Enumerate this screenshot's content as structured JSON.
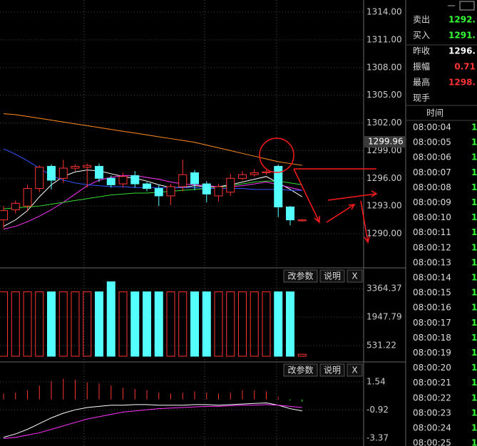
{
  "price_panel": {
    "ylim": [
      1286.38,
      1315.31
    ],
    "yticks": [
      {
        "value": 1314,
        "label": "1314.00"
      },
      {
        "value": 1311,
        "label": "1311.00"
      },
      {
        "value": 1308,
        "label": "1308.00"
      },
      {
        "value": 1305,
        "label": "1305.00"
      },
      {
        "value": 1302,
        "label": "1302.00"
      },
      {
        "value": 1299,
        "label": "1299.00"
      },
      {
        "value": 1296,
        "label": "1296.00"
      },
      {
        "value": 1293,
        "label": "1293.00"
      },
      {
        "value": 1290,
        "label": "1290.00"
      }
    ],
    "current": {
      "value": 1299.96,
      "label": "1299.96"
    },
    "candles": [
      {
        "open": 1291.5,
        "close": 1292.5,
        "high": 1293,
        "low": 1290.6
      },
      {
        "open": 1292.6,
        "close": 1293.3,
        "high": 1293.6,
        "low": 1292.2
      },
      {
        "open": 1293,
        "close": 1294.9,
        "high": 1295.3,
        "low": 1292.5
      },
      {
        "open": 1294.9,
        "close": 1297.2,
        "high": 1297.4,
        "low": 1294.5
      },
      {
        "open": 1297.3,
        "close": 1295.8,
        "high": 1297.5,
        "low": 1294.8
      },
      {
        "open": 1296,
        "close": 1297.1,
        "high": 1298,
        "low": 1295.5
      },
      {
        "open": 1297.1,
        "close": 1297.3,
        "high": 1297.5,
        "low": 1296.8
      },
      {
        "open": 1297.2,
        "close": 1297.4,
        "high": 1297.6,
        "low": 1295
      },
      {
        "open": 1297.3,
        "close": 1296,
        "high": 1297.6,
        "low": 1295.6
      },
      {
        "open": 1296,
        "close": 1295.3,
        "high": 1296.3,
        "low": 1295
      },
      {
        "open": 1295.4,
        "close": 1296.2,
        "high": 1296.6,
        "low": 1295
      },
      {
        "open": 1296.3,
        "close": 1295.4,
        "high": 1296.8,
        "low": 1295
      },
      {
        "open": 1295.4,
        "close": 1294.9,
        "high": 1295.6,
        "low": 1294.6
      },
      {
        "open": 1294.9,
        "close": 1294.1,
        "high": 1295.3,
        "low": 1293
      },
      {
        "open": 1294.1,
        "close": 1295.1,
        "high": 1295.4,
        "low": 1293.1
      },
      {
        "open": 1295.1,
        "close": 1296.4,
        "high": 1298,
        "low": 1294.6
      },
      {
        "open": 1296.6,
        "close": 1295.4,
        "high": 1296.9,
        "low": 1294.7
      },
      {
        "open": 1295.4,
        "close": 1294.3,
        "high": 1295.7,
        "low": 1293.4
      },
      {
        "open": 1294.1,
        "close": 1295.1,
        "high": 1295.4,
        "low": 1293.5
      },
      {
        "open": 1294.5,
        "close": 1296,
        "high": 1296.5,
        "low": 1294.1
      },
      {
        "open": 1296,
        "close": 1296.4,
        "high": 1296.8,
        "low": 1295.8
      },
      {
        "open": 1296.4,
        "close": 1296.6,
        "high": 1297,
        "low": 1296.2
      },
      {
        "open": 1296.6,
        "close": 1296.7,
        "high": 1296.9,
        "low": 1296.4
      },
      {
        "open": 1297.3,
        "close": 1292.9,
        "high": 1297.5,
        "low": 1291.8
      },
      {
        "open": 1292.9,
        "close": 1291.5,
        "high": 1293,
        "low": 1290.9
      },
      {
        "open": 1291.4,
        "close": 1291.5,
        "high": 1291.6,
        "low": 1291.3
      }
    ],
    "ma": [
      {
        "color": "#ffffff",
        "values": [
          1290.8,
          1291.5,
          1292.5,
          1294,
          1295.3,
          1296.2,
          1296.7,
          1296.9,
          1296.8,
          1296.5,
          1296.2,
          1296,
          1295.7,
          1295.3,
          1295,
          1295,
          1295.2,
          1295.1,
          1295.1,
          1295.3,
          1295.6,
          1295.9,
          1296.2,
          1295.5,
          1294.8,
          1294
        ]
      },
      {
        "color": "#ff33ff",
        "values": [
          1290.5,
          1290.8,
          1291.3,
          1291.9,
          1292.6,
          1293.4,
          1294.3,
          1295.2,
          1295.8,
          1296.1,
          1296.3,
          1296.3,
          1296.1,
          1295.9,
          1295.6,
          1295.4,
          1295.3,
          1295.2,
          1295.1,
          1295.1,
          1295.2,
          1295.4,
          1295.6,
          1295.3,
          1295,
          1294.7
        ]
      },
      {
        "color": "#33dd33",
        "values": [
          1292.7,
          1292.8,
          1292.9,
          1293,
          1293.2,
          1293.4,
          1293.6,
          1293.8,
          1294,
          1294.2,
          1294.3,
          1294.4,
          1294.4,
          1294.5,
          1294.6,
          1294.7,
          1294.8,
          1294.9,
          1295,
          1295.2,
          1295.4,
          1295.6,
          1295.7,
          1295.7,
          1295.5,
          1295.3
        ]
      },
      {
        "color": "#3355ff",
        "values": [
          1299.2,
          1298.6,
          1297.9,
          1297.1,
          1296.3,
          1295.8,
          1295.5,
          1295.3,
          1295.2,
          1295.1,
          1295.1,
          1295,
          1295,
          1295,
          1295,
          1295,
          1295,
          1294.9,
          1294.9,
          1294.9,
          1294.9,
          1294.8,
          1294.8,
          1294.8,
          1294.7,
          1294.7
        ]
      },
      {
        "color": "#ff8c1a",
        "values": [
          1303,
          1302.9,
          1302.7,
          1302.5,
          1302.3,
          1302.1,
          1301.9,
          1301.7,
          1301.5,
          1301.3,
          1301.1,
          1300.9,
          1300.7,
          1300.5,
          1300.3,
          1300.1,
          1299.9,
          1299.6,
          1299.3,
          1299,
          1298.7,
          1298.4,
          1298.1,
          1297.8,
          1297.6,
          1297.4
        ]
      }
    ]
  },
  "volume_panel": {
    "ylim": [
      0,
      4320
    ],
    "yticks": [
      3364.37,
      1947.79,
      531.22
    ],
    "values": [
      3200,
      3200,
      3200,
      3200,
      3200,
      3200,
      3200,
      3200,
      3200,
      3700,
      3200,
      3200,
      3200,
      3200,
      3200,
      3200,
      3200,
      3200,
      3200,
      3200,
      3200,
      3200,
      3200,
      3200,
      3200,
      100
    ]
  },
  "macd_panel": {
    "ylim": [
      -4.05,
      3.14
    ],
    "yticks": [
      1.54,
      -0.92,
      -3.37
    ],
    "histogram": [
      0.5,
      0.6,
      0.8,
      1.2,
      1.6,
      1.8,
      1.7,
      1.5,
      1.4,
      1.2,
      1,
      0.9,
      0.8,
      0.6,
      0.5,
      0.6,
      0.7,
      0.6,
      0.5,
      0.6,
      0.8,
      0.8,
      0.7,
      0.2,
      -0.1,
      -0.2
    ],
    "lines": [
      {
        "color": "#ffffff",
        "values": [
          -3.3,
          -3,
          -2.6,
          -2.1,
          -1.6,
          -1.2,
          -0.9,
          -0.7,
          -0.6,
          -0.5,
          -0.5,
          -0.45,
          -0.45,
          -0.5,
          -0.5,
          -0.5,
          -0.45,
          -0.45,
          -0.5,
          -0.45,
          -0.4,
          -0.35,
          -0.3,
          -0.5,
          -0.8,
          -1
        ]
      },
      {
        "color": "#ff33ff",
        "values": [
          -3.4,
          -3.3,
          -3.1,
          -2.9,
          -2.6,
          -2.3,
          -2,
          -1.7,
          -1.5,
          -1.3,
          -1.1,
          -1,
          -0.9,
          -0.8,
          -0.75,
          -0.7,
          -0.65,
          -0.6,
          -0.6,
          -0.55,
          -0.5,
          -0.5,
          -0.45,
          -0.5,
          -0.6,
          -0.7
        ]
      }
    ]
  },
  "buttons": [
    "改参数",
    "说明",
    "X"
  ],
  "quote": [
    {
      "label": "卖出",
      "value": "1292.",
      "color": "#33ff33"
    },
    {
      "label": "买入",
      "value": "1291.",
      "color": "#33ff33"
    },
    {
      "label": "昨收",
      "value": "1296.",
      "color": "#ffffff"
    },
    {
      "label": "振幅",
      "value": "0.71",
      "color": "#ff3333"
    },
    {
      "label": "最高",
      "value": "1298.",
      "color": "#ff3333"
    },
    {
      "label": "现手",
      "value": "",
      "color": "#ffffff"
    }
  ],
  "time_header": "时间",
  "times": [
    {
      "time": "08:00:04",
      "value": "1"
    },
    {
      "time": "08:00:05",
      "value": "1"
    },
    {
      "time": "08:00:06",
      "value": "1"
    },
    {
      "time": "08:00:07",
      "value": "1"
    },
    {
      "time": "08:00:08",
      "value": "1"
    },
    {
      "time": "08:00:09",
      "value": "1"
    },
    {
      "time": "08:00:10",
      "value": "1"
    },
    {
      "time": "08:00:11",
      "value": "1"
    },
    {
      "time": "08:00:12",
      "value": "1"
    },
    {
      "time": "08:00:13",
      "value": "1"
    },
    {
      "time": "08:00:14",
      "value": "1"
    },
    {
      "time": "08:00:15",
      "value": "1"
    },
    {
      "time": "08:00:16",
      "value": "1"
    },
    {
      "time": "08:00:17",
      "value": "1"
    },
    {
      "time": "08:00:18",
      "value": "1"
    },
    {
      "time": "08:00:19",
      "value": "1"
    },
    {
      "time": "08:00:20",
      "value": "1"
    },
    {
      "time": "08:00:21",
      "value": "1"
    },
    {
      "time": "08:00:22",
      "value": "1"
    },
    {
      "time": "08:00:23",
      "value": "1"
    },
    {
      "time": "08:00:24",
      "value": "1"
    },
    {
      "time": "08:00:25",
      "value": "1"
    }
  ]
}
